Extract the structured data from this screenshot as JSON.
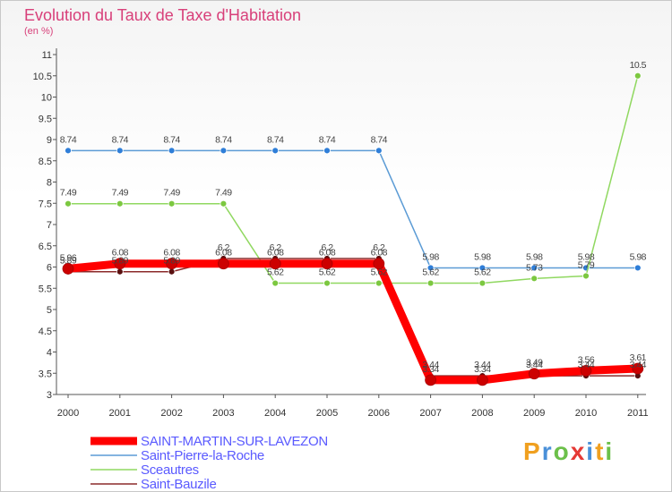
{
  "title": "Evolution du Taux de Taxe d'Habitation",
  "unit": "(en %)",
  "logo_text": "Proxiti",
  "chart_data": {
    "type": "line",
    "title": "Evolution du Taux de Taxe d'Habitation",
    "ylabel": "(en %)",
    "xlabel": "",
    "x": [
      2000,
      2001,
      2002,
      2003,
      2004,
      2005,
      2006,
      2007,
      2008,
      2009,
      2010,
      2011
    ],
    "ylim": [
      3,
      11
    ],
    "yticks": [
      3,
      3.5,
      4,
      4.5,
      5,
      5.5,
      6,
      6.5,
      7,
      7.5,
      8,
      8.5,
      9,
      9.5,
      10,
      10.5,
      11
    ],
    "ytick_labels": [
      "3",
      "3.5",
      "4",
      "4.5",
      "5",
      "5.5",
      "6",
      "6.5",
      "7",
      "7.5",
      "8",
      "8.5",
      "9",
      "9.5",
      "10",
      "10.5",
      "11"
    ],
    "grid": false,
    "legend_position": "bottom-left",
    "series": [
      {
        "name": "SAINT-MARTIN-SUR-LAVEZON",
        "color": "#ff0000",
        "marker": "#cc0000",
        "width": 9,
        "values": [
          5.96,
          6.08,
          6.08,
          6.08,
          6.08,
          6.08,
          6.08,
          3.34,
          3.34,
          3.49,
          3.56,
          3.61
        ],
        "labels": [
          "5.96",
          "6.08",
          "6.08",
          "6.08",
          "6.08",
          "6.08",
          "6.08",
          "3.34",
          "3.34",
          "3.49",
          "3.56",
          "3.61"
        ]
      },
      {
        "name": "Saint-Pierre-la-Roche",
        "color": "#5b9bd5",
        "marker": "#2f7ed8",
        "width": 1.5,
        "values": [
          8.74,
          8.74,
          8.74,
          8.74,
          8.74,
          8.74,
          8.74,
          5.98,
          5.98,
          5.98,
          5.98,
          5.98
        ],
        "labels": [
          "8.74",
          "8.74",
          "8.74",
          "8.74",
          "8.74",
          "8.74",
          "8.74",
          "5.98",
          "5.98",
          "5.98",
          "5.98",
          "5.98"
        ]
      },
      {
        "name": "Sceautres",
        "color": "#90d860",
        "marker": "#7cc840",
        "width": 1.5,
        "values": [
          7.49,
          7.49,
          7.49,
          7.49,
          5.62,
          5.62,
          5.62,
          5.62,
          5.62,
          5.73,
          5.79,
          10.5
        ],
        "labels": [
          "7.49",
          "7.49",
          "7.49",
          "7.49",
          "5.62",
          "5.62",
          "5.62",
          "5.62",
          "5.62",
          "5.73",
          "5.79",
          "10.5"
        ]
      },
      {
        "name": "Saint-Bauzile",
        "color": "#8b2a2a",
        "marker": "#5a1010",
        "width": 1.5,
        "values": [
          5.89,
          5.89,
          5.89,
          6.2,
          6.2,
          6.2,
          6.2,
          3.44,
          3.44,
          3.44,
          3.44,
          3.44
        ],
        "labels": [
          "5.89",
          "5.89",
          "5.89",
          "6.2",
          "6.2",
          "6.2",
          "6.2",
          "3.44",
          "3.44",
          "3.44",
          "3.44",
          "3.44"
        ]
      }
    ]
  },
  "colors": {
    "title": "#d8407a",
    "axis": "#555555",
    "legend_text": "#5a5aff"
  }
}
